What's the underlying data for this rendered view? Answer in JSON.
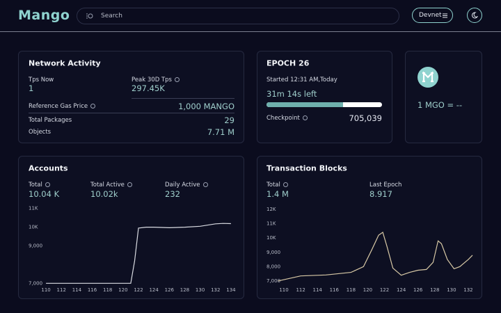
{
  "header": {
    "logo": "Mango",
    "search_placeholder": "Search",
    "network": "Devnet"
  },
  "network_activity": {
    "title": "Network Activity",
    "tps_now_label": "Tps Now",
    "tps_now": "1",
    "peak_label": "Peak 30D Tps",
    "peak": "297.45K",
    "gas_label": "Reference Gas Price",
    "gas": "1,000 MANGO",
    "packages_label": "Total Packages",
    "packages": "29",
    "objects_label": "Objects",
    "objects": "7.71 M"
  },
  "epoch": {
    "title": "EPOCH 26",
    "started": "Started 12:31 AM,Today",
    "time_left": "31m 14s left",
    "progress": 66,
    "checkpoint_label": "Checkpoint",
    "checkpoint": "705,039"
  },
  "price": {
    "text": "1 MGO = --"
  },
  "accounts": {
    "title": "Accounts",
    "total_label": "Total",
    "total": "10.04 K",
    "active_label": "Total Active",
    "active": "10.02k",
    "daily_label": "Daily Active",
    "daily": "232",
    "chart": {
      "type": "line",
      "color": "#d9dbe2",
      "x": [
        110,
        112,
        114,
        116,
        118,
        120,
        121,
        121.5,
        122,
        123,
        124,
        126,
        128,
        130,
        132,
        133,
        134
      ],
      "values": [
        7000,
        7000,
        7000,
        7000,
        7000,
        7000,
        7000,
        8200,
        9950,
        10000,
        10000,
        9970,
        10000,
        10050,
        10180,
        10200,
        10190
      ],
      "xlim": [
        109,
        135
      ],
      "ylim": [
        6900,
        11100
      ],
      "xticks": [
        110,
        112,
        114,
        116,
        118,
        120,
        122,
        124,
        126,
        128,
        130,
        132,
        134
      ],
      "yticks": [
        {
          "value": 7000,
          "label": "7,000"
        },
        {
          "value": 9000,
          "label": "9,000"
        },
        {
          "value": 10000,
          "label": "10K"
        },
        {
          "value": 11000,
          "label": "11K"
        }
      ]
    }
  },
  "transactions": {
    "title": "Transaction Blocks",
    "total_label": "Total",
    "total": "1.4 M",
    "epoch_label": "Last Epoch",
    "epoch": "8.917",
    "chart": {
      "type": "line",
      "color": "#d8c9a6",
      "x": [
        109.3,
        112,
        115,
        118,
        119.5,
        120.5,
        121.3,
        121.8,
        122.3,
        123,
        124,
        125,
        126,
        127,
        127.8,
        128.4,
        128.8,
        129.5,
        130.3,
        131,
        132,
        132.5
      ],
      "values": [
        7000,
        7350,
        7420,
        7600,
        8000,
        9200,
        10200,
        10400,
        9400,
        7900,
        7400,
        7600,
        7750,
        7800,
        8300,
        9800,
        9600,
        8500,
        7850,
        8000,
        8500,
        8800
      ],
      "xlim": [
        109,
        133
      ],
      "ylim": [
        6800,
        12200
      ],
      "xticks": [
        110,
        112,
        114,
        116,
        118,
        120,
        122,
        124,
        126,
        128,
        130,
        132
      ],
      "yticks": [
        {
          "value": 7000,
          "label": "7,000"
        },
        {
          "value": 8000,
          "label": "8,000"
        },
        {
          "value": 9000,
          "label": "9,000"
        },
        {
          "value": 10000,
          "label": "10K"
        },
        {
          "value": 11000,
          "label": "11K"
        },
        {
          "value": 12000,
          "label": "12K"
        }
      ]
    }
  }
}
